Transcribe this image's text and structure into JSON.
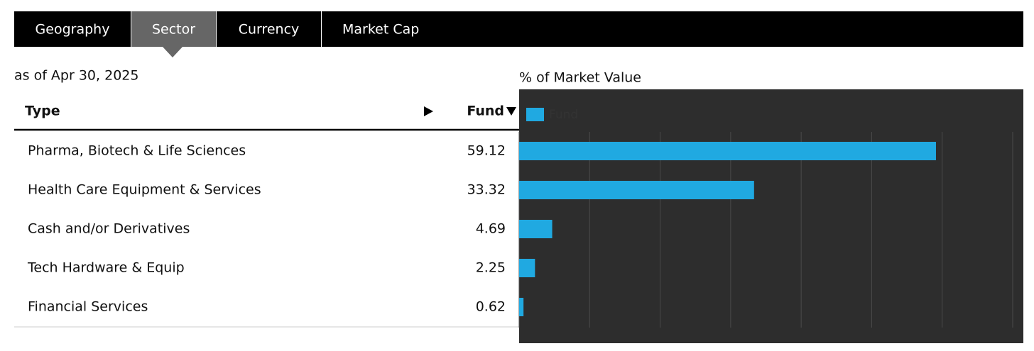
{
  "tabs": [
    "Geography",
    "Sector",
    "Currency",
    "Market Cap"
  ],
  "as_of": "as of Apr 30, 2025",
  "table": {
    "columns": [
      "Type",
      "Fund"
    ]
  },
  "chart_data": {
    "type": "bar",
    "orientation": "horizontal",
    "title": "% of Market Value",
    "categories": [
      "Pharma, Biotech & Life Sciences",
      "Health Care Equipment & Services",
      "Cash and/or Derivatives",
      "Tech Hardware & Equip",
      "Financial Services"
    ],
    "series": [
      {
        "name": "Fund",
        "color": "#20a9e1",
        "values": [
          59.12,
          33.32,
          4.69,
          2.25,
          0.62
        ]
      }
    ],
    "xlim": [
      0,
      70
    ],
    "xticks": [
      0,
      10,
      20,
      30,
      40,
      50,
      60,
      70
    ],
    "grid": true
  }
}
